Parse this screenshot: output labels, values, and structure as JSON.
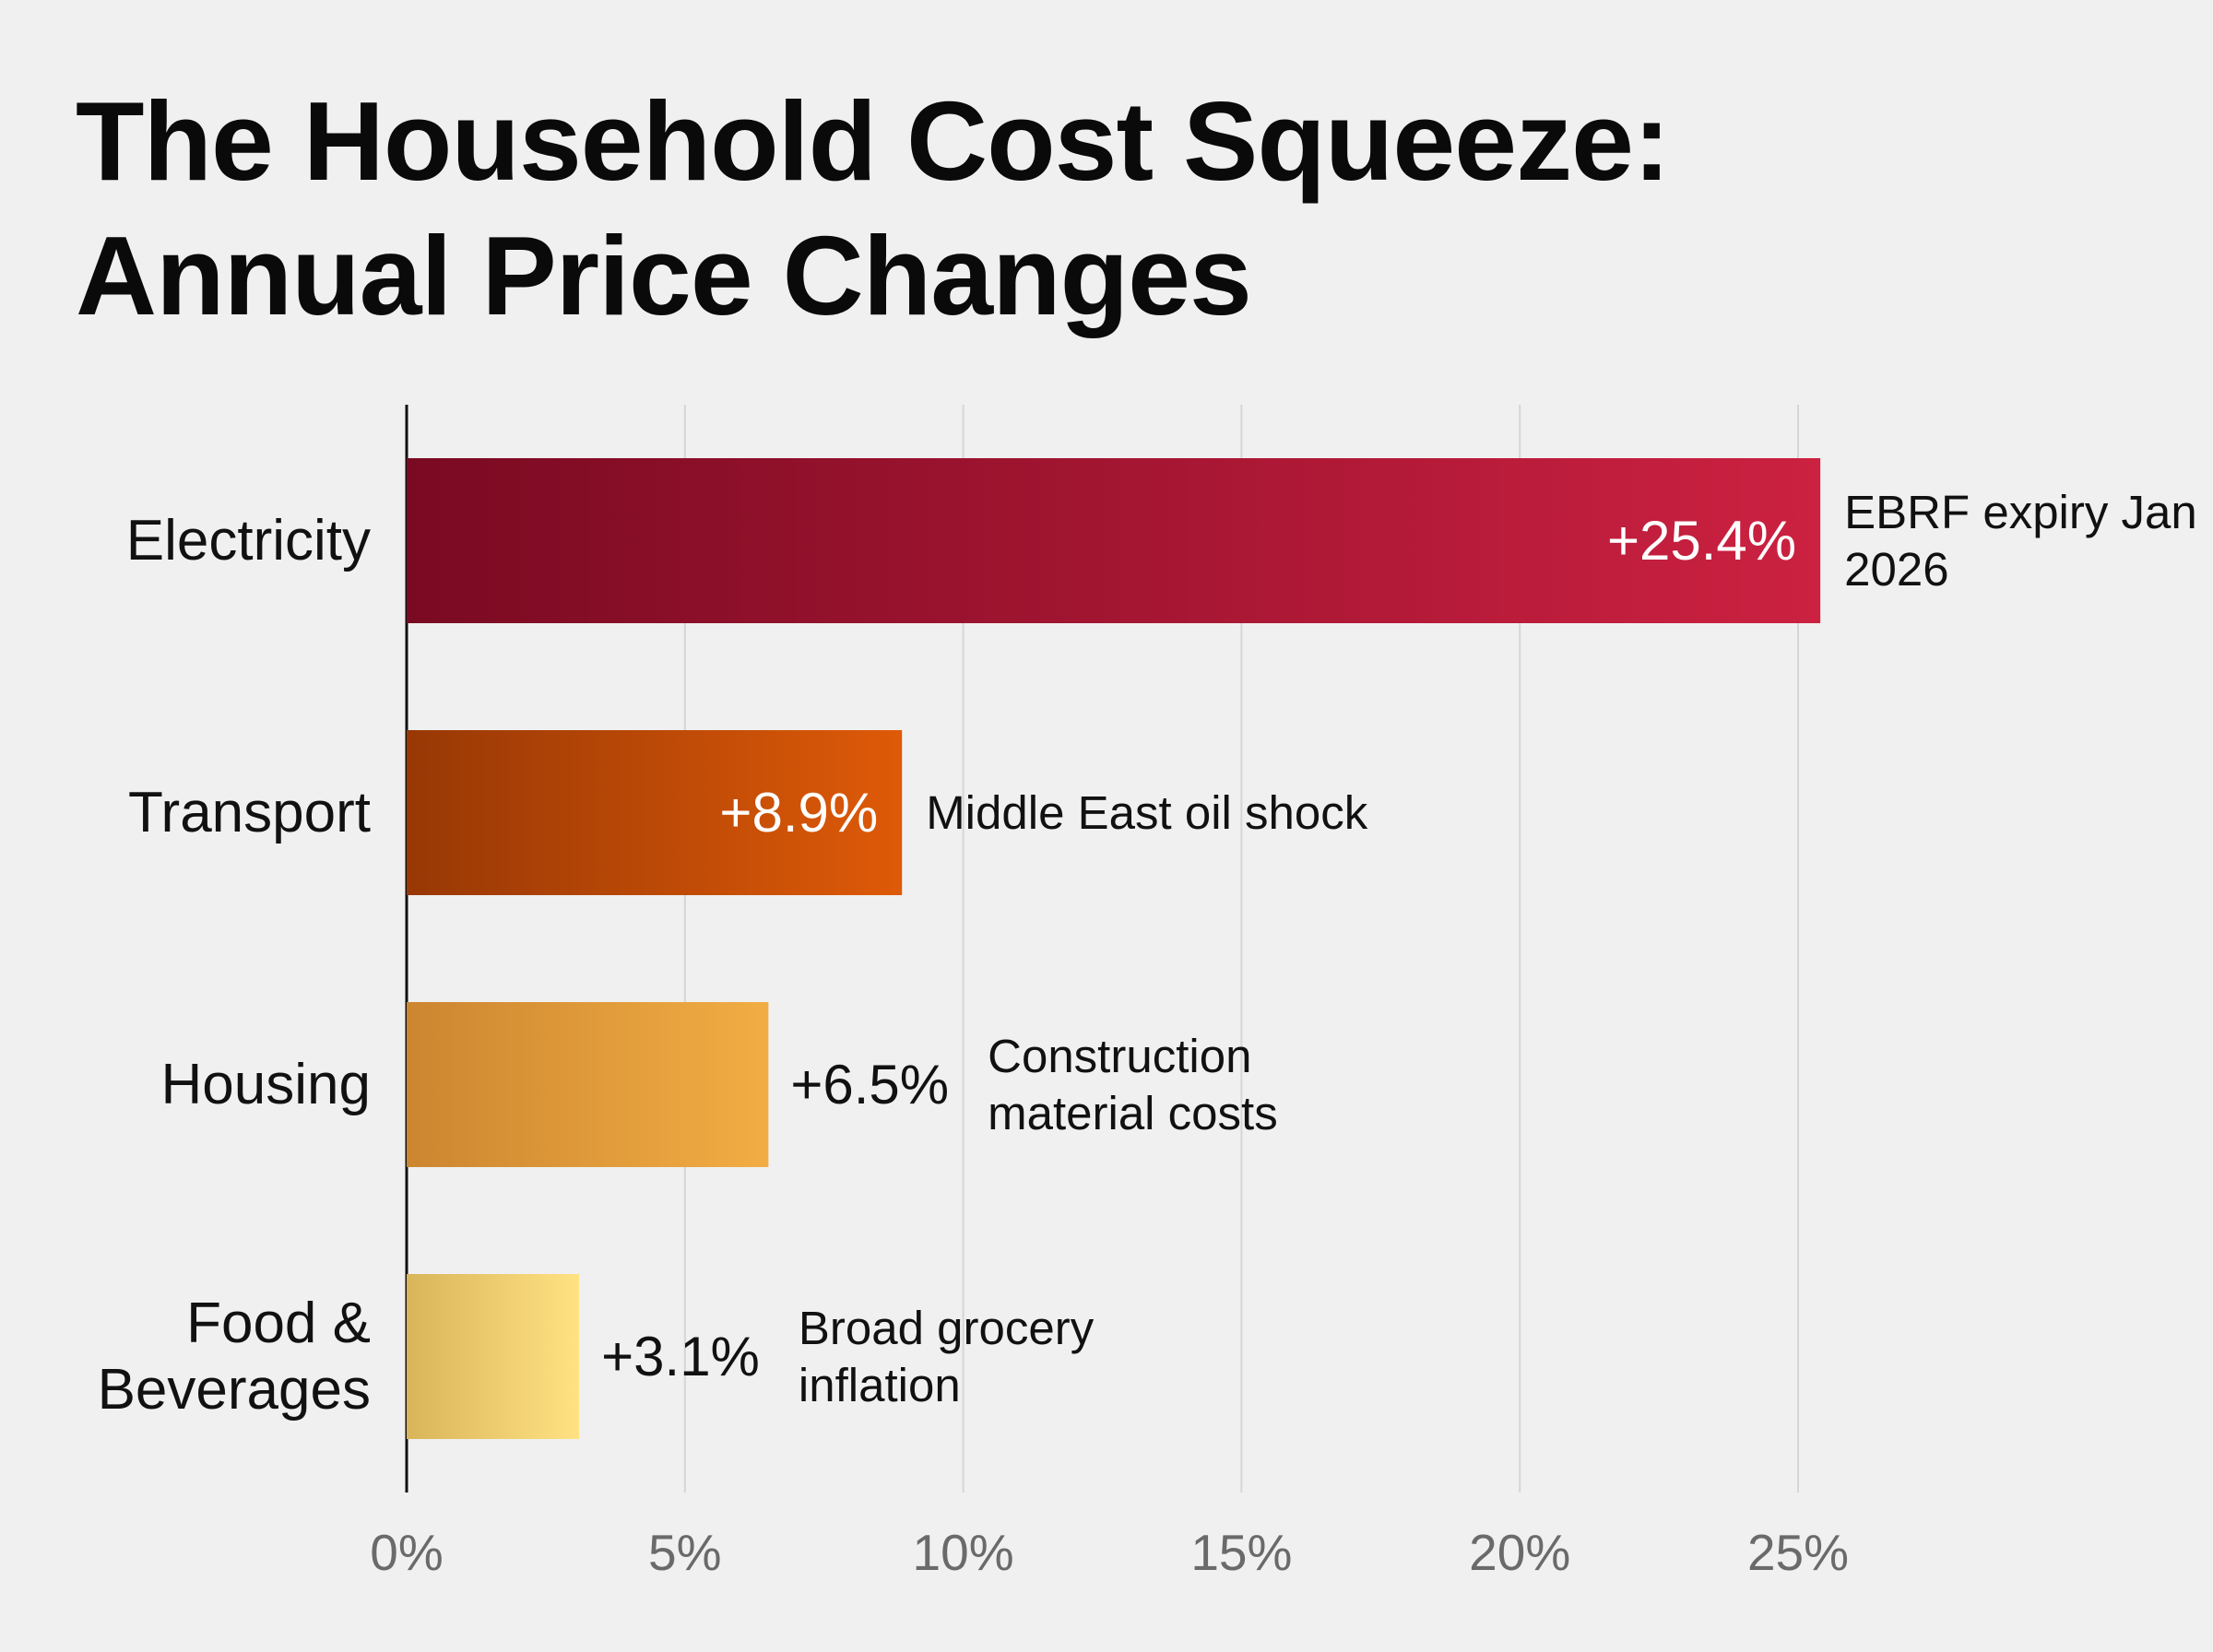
{
  "chart_data": {
    "type": "hbar",
    "title": "The Household Cost Squeeze:",
    "subtitle": "Annual Price Changes",
    "categories": [
      "Electricity",
      "Transport",
      "Housing",
      "Food & Beverages"
    ],
    "values": [
      25.4,
      8.9,
      6.5,
      3.1
    ],
    "value_labels": [
      "+25.4%",
      "+8.9%",
      "+6.5%",
      "+3.1%"
    ],
    "label_position": [
      "inside",
      "inside",
      "outside",
      "outside"
    ],
    "annotations": [
      "EBRF expiry Jan 2026",
      "Middle East oil shock",
      "Construction material costs",
      "Broad grocery inflation"
    ],
    "colors": [
      [
        "#7a0a22",
        "#cc2141"
      ],
      [
        "#983805",
        "#de5a08"
      ],
      [
        "#cc8630",
        "#f2ad44"
      ],
      [
        "#d9b55a",
        "#ffe282"
      ]
    ],
    "xlim": [
      0,
      25
    ],
    "xticks": [
      {
        "value": 0,
        "label": "0%"
      },
      {
        "value": 5,
        "label": "5%"
      },
      {
        "value": 10,
        "label": "10%"
      },
      {
        "value": 15,
        "label": "15%"
      },
      {
        "value": 20,
        "label": "20%"
      },
      {
        "value": 25,
        "label": "25%"
      }
    ],
    "grid": true
  }
}
